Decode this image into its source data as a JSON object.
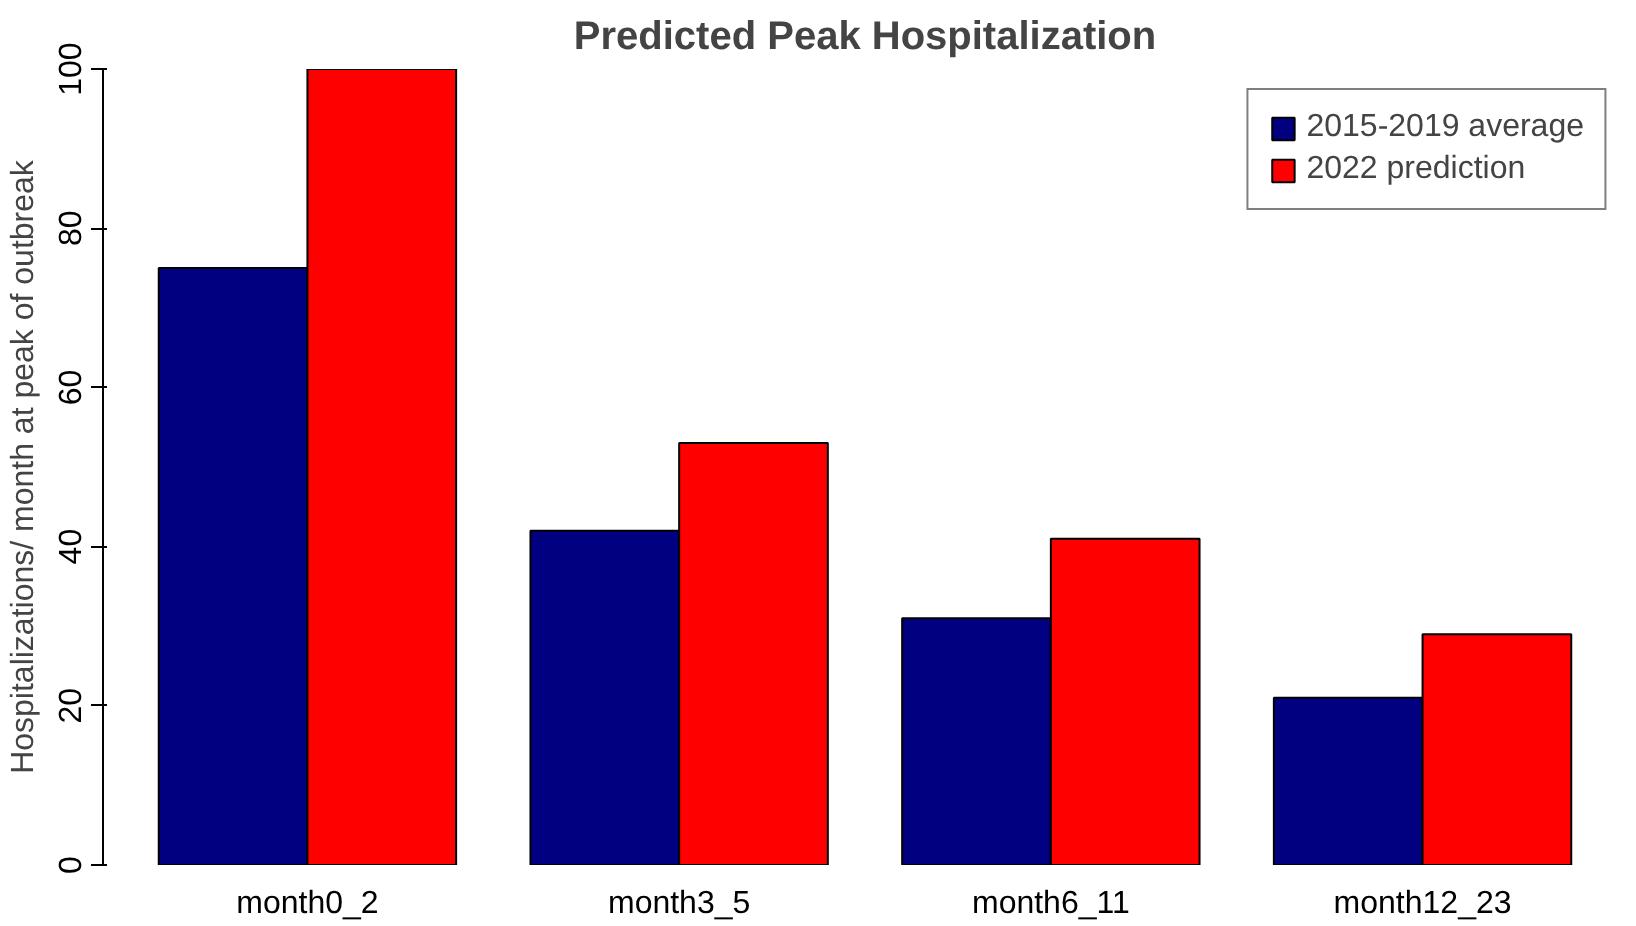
{
  "chart_data": {
    "type": "bar",
    "title": "Predicted Peak Hospitalization",
    "ylabel": "Hospitalizations/ month at peak of outbreak",
    "categories": [
      "month0_2",
      "month3_5",
      "month6_11",
      "month12_23"
    ],
    "series": [
      {
        "name": "2015-2019 average",
        "color": "#000080",
        "values": [
          75,
          42,
          31,
          21
        ]
      },
      {
        "name": "2022 prediction",
        "color": "#ff0000",
        "values": [
          100,
          53,
          41,
          29
        ]
      }
    ],
    "ylim": [
      0,
      100
    ],
    "yticks": [
      0,
      20,
      40,
      60,
      80,
      100
    ],
    "grid": false,
    "legend": "top right"
  }
}
